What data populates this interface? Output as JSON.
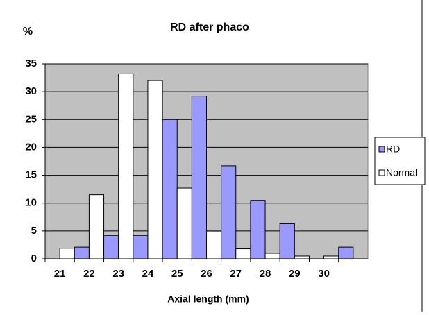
{
  "chart_data": {
    "type": "bar",
    "title": "RD after phaco",
    "y_label": "%",
    "x_label": "Axial length (mm)",
    "categories": [
      "21",
      "22",
      "23",
      "24",
      "25",
      "26",
      "27",
      "28",
      "29",
      "30",
      null
    ],
    "series": [
      {
        "name": "RD",
        "color": "#9999ff",
        "values": [
          0,
          2.1,
          4.2,
          4.2,
          25,
          29.2,
          16.7,
          10.5,
          6.3,
          0,
          2.1
        ]
      },
      {
        "name": "Normal",
        "color": "#ffffff",
        "values": [
          1.9,
          11.5,
          33.2,
          32,
          12.7,
          4.8,
          1.8,
          1.0,
          0.5,
          0.5,
          0
        ]
      }
    ],
    "ylim": [
      0,
      35
    ],
    "yticks": [
      0,
      5,
      10,
      15,
      20,
      25,
      30,
      35
    ],
    "grid": true,
    "legend": "right",
    "plot_background": "#c0c0c0"
  }
}
